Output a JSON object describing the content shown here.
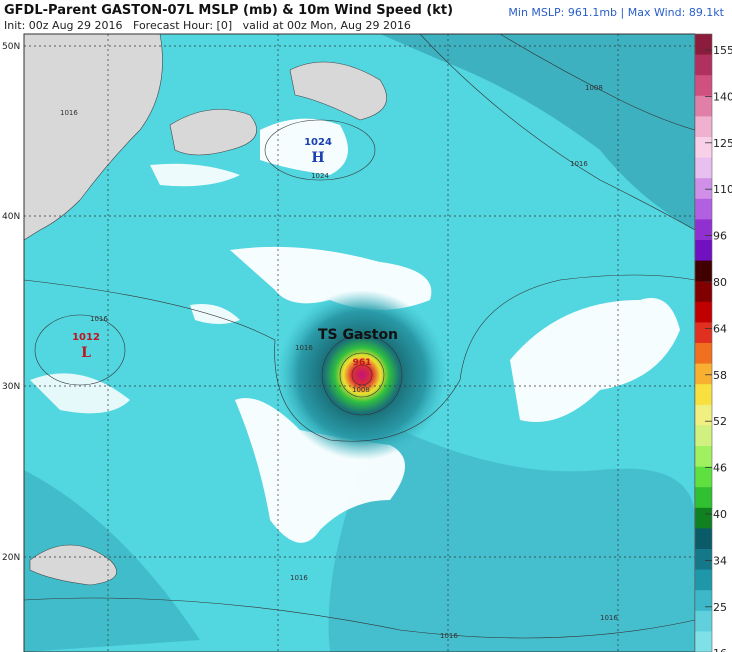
{
  "header": {
    "title": "GFDL-Parent GASTON-07L MSLP (mb) & 10m Wind Speed (kt)",
    "subtitle": "Init: 00z Aug 29 2016   Forecast Hour: [0]   valid at 00z Mon, Aug 29 2016",
    "stats": "Min MSLP: 961.1mb | Max Wind: 89.1kt"
  },
  "map": {
    "lat_labels": [
      "50N",
      "40N",
      "30N",
      "20N"
    ],
    "high": {
      "pressure": "1024",
      "symbol": "H",
      "isobar": "1024"
    },
    "low": {
      "pressure": "1012",
      "symbol": "L"
    },
    "storm": {
      "label": "TS Gaston",
      "pressure": "961"
    },
    "isobar_labels": [
      "1016",
      "1016",
      "1016",
      "1016",
      "1008",
      "1008",
      "1016",
      "1016",
      "1016"
    ]
  },
  "colorbar": {
    "labels": [
      "155",
      "140",
      "125",
      "110",
      "96",
      "80",
      "64",
      "58",
      "52",
      "46",
      "40",
      "34",
      "25",
      "16"
    ]
  }
}
